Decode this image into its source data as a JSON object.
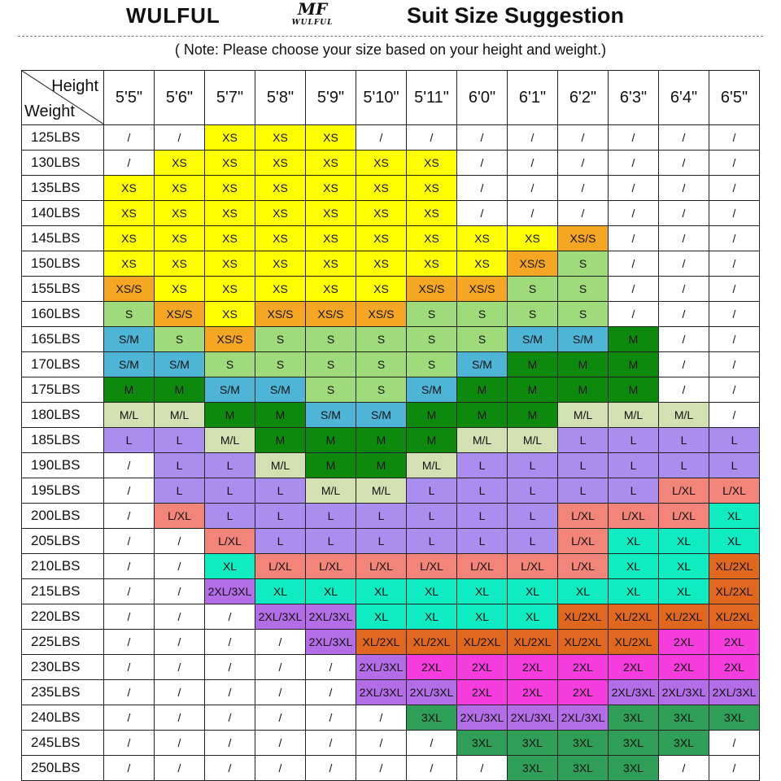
{
  "header": {
    "brand": "WULFUL",
    "logo_mark": "MF",
    "logo_word": "WULFUL",
    "title": "Suit Size Suggestion"
  },
  "note": "( Note: Please choose your size based on your height and weight.)",
  "table": {
    "corner_top": "Height",
    "corner_bottom": "Weight",
    "heights": [
      "5'5\"",
      "5'6\"",
      "5'7\"",
      "5'8\"",
      "5'9\"",
      "5'10\"",
      "5'11\"",
      "6'0\"",
      "6'1\"",
      "6'2\"",
      "6'3\"",
      "6'4\"",
      "6'5\""
    ],
    "weights": [
      "125LBS",
      "130LBS",
      "135LBS",
      "140LBS",
      "145LBS",
      "150LBS",
      "155LBS",
      "160LBS",
      "165LBS",
      "170LBS",
      "175LBS",
      "180LBS",
      "185LBS",
      "190LBS",
      "195LBS",
      "200LBS",
      "205LBS",
      "210LBS",
      "215LBS",
      "220LBS",
      "225LBS",
      "230LBS",
      "235LBS",
      "240LBS",
      "245LBS",
      "250LBS"
    ],
    "rows": [
      [
        "/",
        "/",
        "XS",
        "XS",
        "XS",
        "/",
        "/",
        "/",
        "/",
        "/",
        "/",
        "/",
        "/"
      ],
      [
        "/",
        "XS",
        "XS",
        "XS",
        "XS",
        "XS",
        "XS",
        "/",
        "/",
        "/",
        "/",
        "/",
        "/"
      ],
      [
        "XS",
        "XS",
        "XS",
        "XS",
        "XS",
        "XS",
        "XS",
        "/",
        "/",
        "/",
        "/",
        "/",
        "/"
      ],
      [
        "XS",
        "XS",
        "XS",
        "XS",
        "XS",
        "XS",
        "XS",
        "/",
        "/",
        "/",
        "/",
        "/",
        "/"
      ],
      [
        "XS",
        "XS",
        "XS",
        "XS",
        "XS",
        "XS",
        "XS",
        "XS",
        "XS",
        "XS/S",
        "/",
        "/",
        "/"
      ],
      [
        "XS",
        "XS",
        "XS",
        "XS",
        "XS",
        "XS",
        "XS",
        "XS",
        "XS/S",
        "S",
        "/",
        "/",
        "/"
      ],
      [
        "XS/S",
        "XS",
        "XS",
        "XS",
        "XS",
        "XS",
        "XS/S",
        "XS/S",
        "S",
        "S",
        "/",
        "/",
        "/"
      ],
      [
        "S",
        "XS/S",
        "XS",
        "XS/S",
        "XS/S",
        "XS/S",
        "S",
        "S",
        "S",
        "S",
        "/",
        "/",
        "/"
      ],
      [
        "S/M",
        "S",
        "XS/S",
        "S",
        "S",
        "S",
        "S",
        "S",
        "S/M",
        "S/M",
        "M",
        "/",
        "/"
      ],
      [
        "S/M",
        "S/M",
        "S",
        "S",
        "S",
        "S",
        "S",
        "S/M",
        "M",
        "M",
        "M",
        "/",
        "/"
      ],
      [
        "M",
        "M",
        "S/M",
        "S/M",
        "S",
        "S",
        "S/M",
        "M",
        "M",
        "M",
        "M",
        "/",
        "/"
      ],
      [
        "M/L",
        "M/L",
        "M",
        "M",
        "S/M",
        "S/M",
        "M",
        "M",
        "M",
        "M/L",
        "M/L",
        "M/L",
        "/"
      ],
      [
        "L",
        "L",
        "M/L",
        "M",
        "M",
        "M",
        "M",
        "M/L",
        "M/L",
        "L",
        "L",
        "L",
        "L"
      ],
      [
        "/",
        "L",
        "L",
        "M/L",
        "M",
        "M",
        "M/L",
        "L",
        "L",
        "L",
        "L",
        "L",
        "L"
      ],
      [
        "/",
        "L",
        "L",
        "L",
        "M/L",
        "M/L",
        "L",
        "L",
        "L",
        "L",
        "L",
        "L/XL",
        "L/XL"
      ],
      [
        "/",
        "L/XL",
        "L",
        "L",
        "L",
        "L",
        "L",
        "L",
        "L",
        "L/XL",
        "L/XL",
        "L/XL",
        "XL"
      ],
      [
        "/",
        "/",
        "L/XL",
        "L",
        "L",
        "L",
        "L",
        "L",
        "L",
        "L/XL",
        "XL",
        "XL",
        "XL"
      ],
      [
        "/",
        "/",
        "XL",
        "L/XL",
        "L/XL",
        "L/XL",
        "L/XL",
        "L/XL",
        "L/XL",
        "L/XL",
        "XL",
        "XL",
        "XL/2XL"
      ],
      [
        "/",
        "/",
        "2XL/3XL",
        "XL",
        "XL",
        "XL",
        "XL",
        "XL",
        "XL",
        "XL",
        "XL",
        "XL",
        "XL/2XL"
      ],
      [
        "/",
        "/",
        "/",
        "2XL/3XL",
        "2XL/3XL",
        "XL",
        "XL",
        "XL",
        "XL",
        "XL/2XL",
        "XL/2XL",
        "XL/2XL",
        "XL/2XL"
      ],
      [
        "/",
        "/",
        "/",
        "/",
        "2XL/3XL",
        "XL/2XL",
        "XL/2XL",
        "XL/2XL",
        "XL/2XL",
        "XL/2XL",
        "XL/2XL",
        "2XL",
        "2XL"
      ],
      [
        "/",
        "/",
        "/",
        "/",
        "/",
        "2XL/3XL",
        "2XL",
        "2XL",
        "2XL",
        "2XL",
        "2XL",
        "2XL",
        "2XL"
      ],
      [
        "/",
        "/",
        "/",
        "/",
        "/",
        "2XL/3XL",
        "2XL/3XL",
        "2XL",
        "2XL",
        "2XL",
        "2XL/3XL",
        "2XL/3XL",
        "2XL/3XL"
      ],
      [
        "/",
        "/",
        "/",
        "/",
        "/",
        "/",
        "3XL",
        "2XL/3XL",
        "2XL/3XL",
        "2XL/3XL",
        "3XL",
        "3XL",
        "3XL"
      ],
      [
        "/",
        "/",
        "/",
        "/",
        "/",
        "/",
        "/",
        "3XL",
        "3XL",
        "3XL",
        "3XL",
        "3XL",
        "/"
      ],
      [
        "/",
        "/",
        "/",
        "/",
        "/",
        "/",
        "/",
        "/",
        "3XL",
        "3XL",
        "3XL",
        "/",
        "/"
      ]
    ]
  },
  "size_colors": {
    "XS": "#ffff00",
    "XS/S": "#f5a623",
    "S": "#9fdb7a",
    "S/M": "#4fb5d6",
    "M": "#0d8a0d",
    "M/L": "#d2e0b2",
    "L": "#a98ef0",
    "L/XL": "#f2847a",
    "XL": "#10ecc2",
    "XL/2XL": "#e0681e",
    "2XL/3XL": "#b36de6",
    "2XL": "#f43ddc",
    "3XL": "#2f9e57",
    "/": "#ffffff"
  }
}
